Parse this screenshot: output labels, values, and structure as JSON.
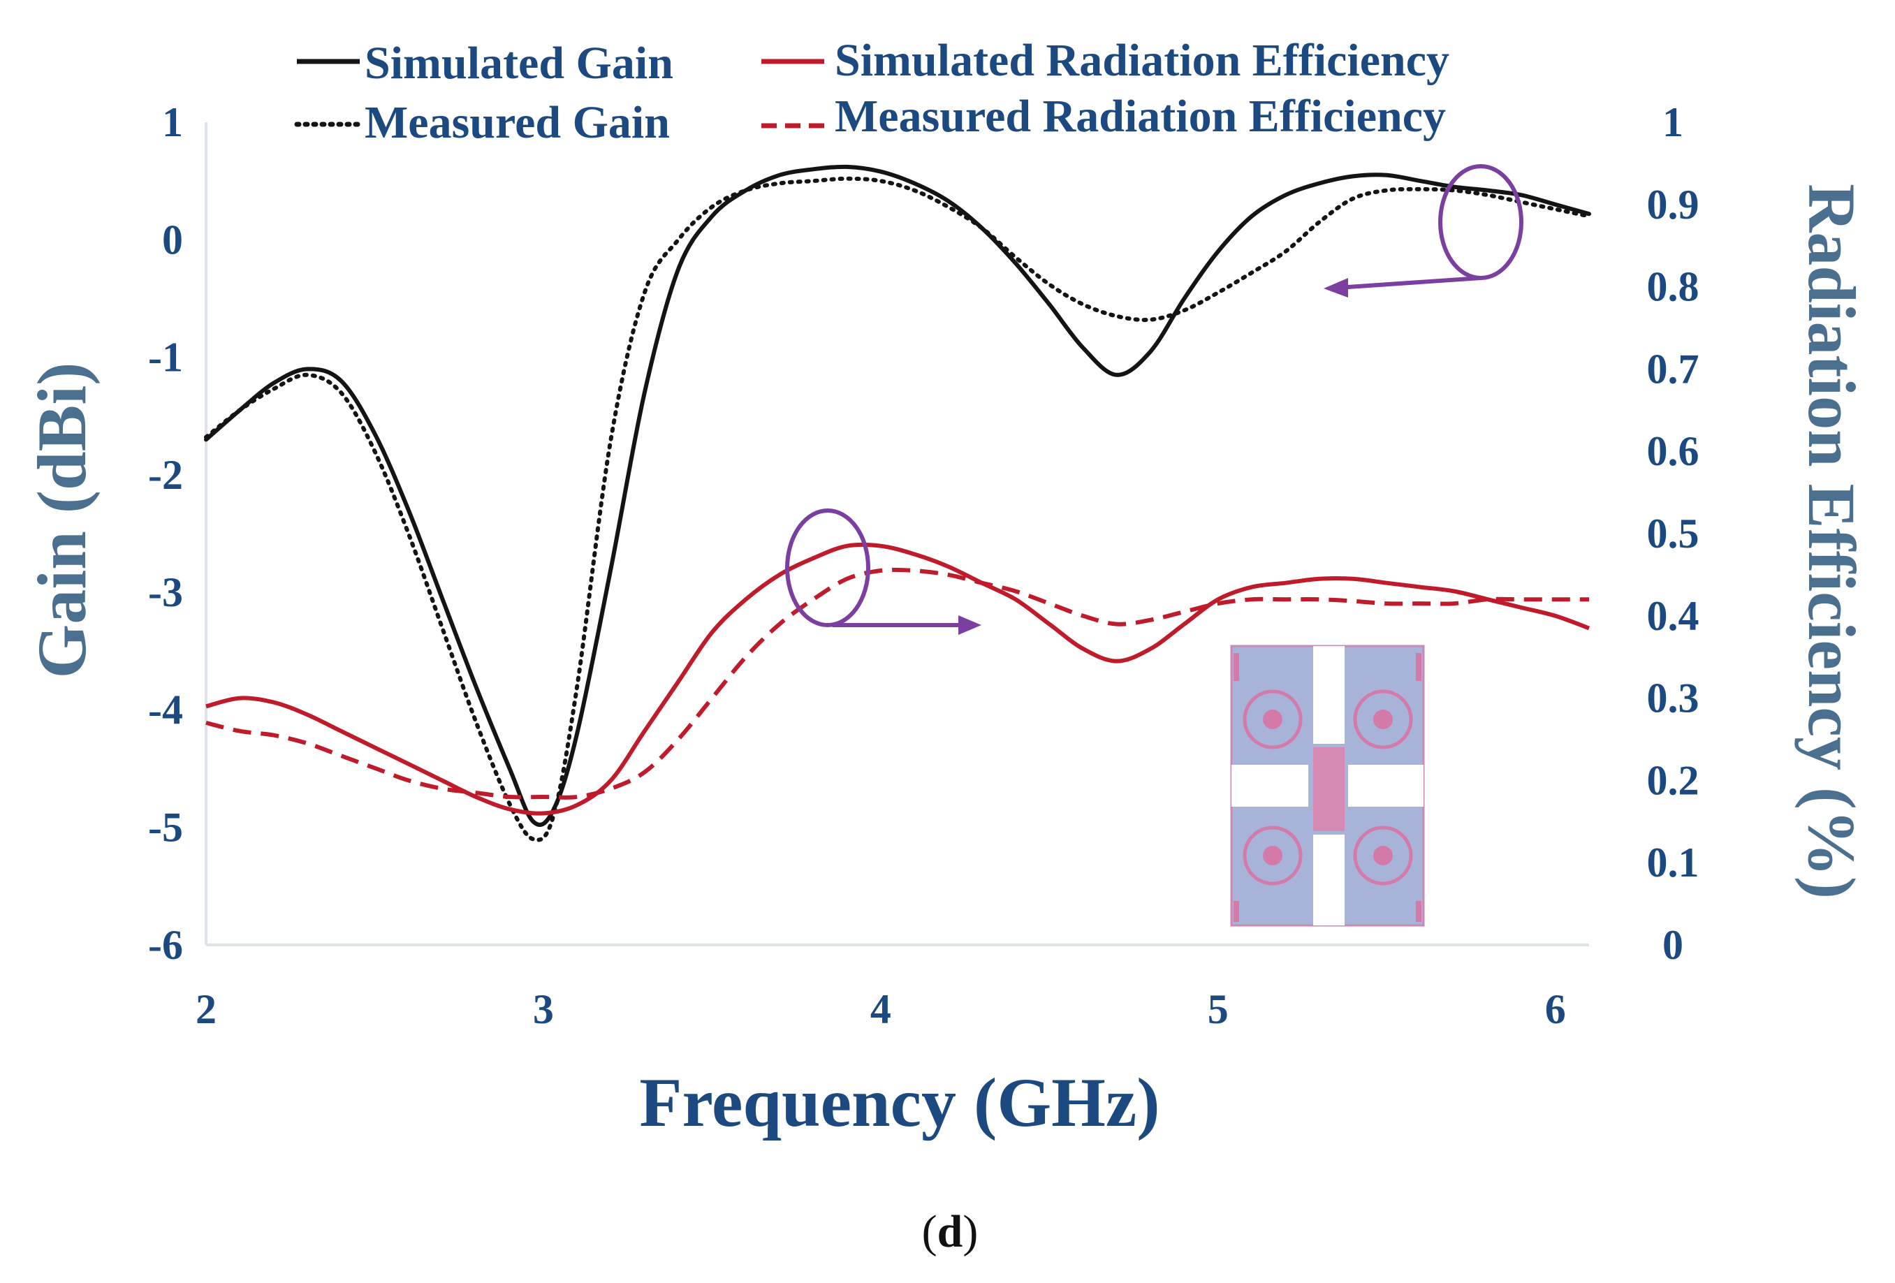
{
  "chart_data": {
    "type": "line",
    "xlabel": "Frequency (GHz)",
    "ylabel_left": "Gain (dBi)",
    "ylabel_right": "Radiation Efficiency (%)",
    "caption": {
      "open": "(",
      "letter": "d",
      "close": ")"
    },
    "xlim": [
      2,
      6.1
    ],
    "ylim_left": [
      -6,
      1
    ],
    "ylim_right": [
      0,
      1
    ],
    "x_ticks": [
      "2",
      "3",
      "4",
      "5",
      "6"
    ],
    "y_left_ticks": [
      "1",
      "0",
      "-1",
      "-2",
      "-3",
      "-4",
      "-5",
      "-6"
    ],
    "y_right_ticks": [
      "1",
      "0.9",
      "0.8",
      "0.7",
      "0.6",
      "0.5",
      "0.4",
      "0.3",
      "0.2",
      "0.1",
      "0"
    ],
    "colors": {
      "gain": "#141414",
      "efficiency": "#c01b2a",
      "axis_text": "#1c4a80",
      "axis_title": "#4a6f8f",
      "marker": "#7b3fa0"
    },
    "series": [
      {
        "name": "Simulated Gain",
        "axis": "left",
        "style": "solid",
        "x": [
          2.0,
          2.1,
          2.2,
          2.3,
          2.4,
          2.5,
          2.6,
          2.7,
          2.8,
          2.9,
          2.97,
          3.03,
          3.1,
          3.2,
          3.3,
          3.4,
          3.5,
          3.6,
          3.7,
          3.8,
          3.9,
          4.0,
          4.1,
          4.2,
          4.3,
          4.4,
          4.5,
          4.6,
          4.7,
          4.8,
          4.9,
          5.0,
          5.1,
          5.2,
          5.3,
          5.4,
          5.5,
          5.6,
          5.7,
          5.8,
          5.9,
          6.0,
          6.1
        ],
        "y": [
          -1.7,
          -1.45,
          -1.22,
          -1.1,
          -1.2,
          -1.65,
          -2.3,
          -3.05,
          -3.8,
          -4.5,
          -4.95,
          -4.85,
          -4.2,
          -2.8,
          -1.3,
          -0.25,
          0.2,
          0.42,
          0.55,
          0.6,
          0.62,
          0.58,
          0.48,
          0.33,
          0.1,
          -0.2,
          -0.55,
          -0.92,
          -1.15,
          -0.95,
          -0.5,
          -0.1,
          0.2,
          0.38,
          0.48,
          0.54,
          0.55,
          0.5,
          0.45,
          0.42,
          0.38,
          0.3,
          0.22
        ]
      },
      {
        "name": "Measured Gain",
        "axis": "left",
        "style": "dotted",
        "x": [
          2.0,
          2.1,
          2.2,
          2.3,
          2.4,
          2.5,
          2.6,
          2.7,
          2.8,
          2.9,
          2.97,
          3.03,
          3.1,
          3.2,
          3.3,
          3.4,
          3.5,
          3.6,
          3.7,
          3.8,
          3.9,
          4.0,
          4.1,
          4.2,
          4.3,
          4.4,
          4.5,
          4.6,
          4.7,
          4.8,
          4.9,
          5.0,
          5.1,
          5.2,
          5.3,
          5.4,
          5.5,
          5.6,
          5.7,
          5.8,
          5.9,
          6.0,
          6.1
        ],
        "y": [
          -1.68,
          -1.45,
          -1.27,
          -1.15,
          -1.3,
          -1.8,
          -2.5,
          -3.3,
          -4.1,
          -4.8,
          -5.1,
          -4.9,
          -3.8,
          -1.7,
          -0.45,
          0.0,
          0.28,
          0.42,
          0.48,
          0.5,
          0.52,
          0.5,
          0.42,
          0.28,
          0.1,
          -0.15,
          -0.38,
          -0.55,
          -0.65,
          -0.68,
          -0.6,
          -0.45,
          -0.28,
          -0.1,
          0.15,
          0.35,
          0.42,
          0.43,
          0.42,
          0.38,
          0.32,
          0.26,
          0.2
        ]
      },
      {
        "name": "Simulated Radiation Efficiency",
        "axis": "right",
        "style": "solid",
        "x": [
          2.0,
          2.1,
          2.2,
          2.3,
          2.4,
          2.5,
          2.6,
          2.7,
          2.8,
          2.9,
          3.0,
          3.1,
          3.2,
          3.3,
          3.4,
          3.5,
          3.6,
          3.7,
          3.8,
          3.9,
          4.0,
          4.1,
          4.2,
          4.3,
          4.4,
          4.5,
          4.6,
          4.7,
          4.8,
          4.9,
          5.0,
          5.1,
          5.2,
          5.3,
          5.4,
          5.5,
          5.6,
          5.7,
          5.8,
          5.9,
          6.0,
          6.1
        ],
        "y": [
          0.29,
          0.3,
          0.295,
          0.28,
          0.26,
          0.24,
          0.22,
          0.2,
          0.18,
          0.165,
          0.16,
          0.17,
          0.2,
          0.26,
          0.32,
          0.38,
          0.42,
          0.45,
          0.47,
          0.485,
          0.485,
          0.475,
          0.46,
          0.44,
          0.42,
          0.39,
          0.36,
          0.345,
          0.36,
          0.39,
          0.42,
          0.435,
          0.44,
          0.445,
          0.445,
          0.44,
          0.435,
          0.43,
          0.42,
          0.41,
          0.4,
          0.385
        ]
      },
      {
        "name": "Measured Radiation Efficiency",
        "axis": "right",
        "style": "dashed",
        "x": [
          2.0,
          2.1,
          2.2,
          2.3,
          2.4,
          2.5,
          2.6,
          2.7,
          2.8,
          2.9,
          3.0,
          3.1,
          3.2,
          3.3,
          3.4,
          3.5,
          3.6,
          3.7,
          3.8,
          3.9,
          4.0,
          4.1,
          4.2,
          4.3,
          4.4,
          4.5,
          4.6,
          4.7,
          4.8,
          4.9,
          5.0,
          5.1,
          5.2,
          5.3,
          5.4,
          5.5,
          5.6,
          5.7,
          5.8,
          5.9,
          6.0,
          6.1
        ],
        "y": [
          0.27,
          0.26,
          0.255,
          0.245,
          0.23,
          0.215,
          0.2,
          0.19,
          0.185,
          0.18,
          0.18,
          0.18,
          0.19,
          0.21,
          0.25,
          0.3,
          0.35,
          0.39,
          0.42,
          0.445,
          0.455,
          0.455,
          0.45,
          0.44,
          0.43,
          0.415,
          0.4,
          0.39,
          0.395,
          0.405,
          0.415,
          0.42,
          0.42,
          0.42,
          0.418,
          0.415,
          0.415,
          0.415,
          0.42,
          0.42,
          0.42,
          0.42
        ]
      }
    ],
    "legend": [
      "Simulated Gain",
      "Simulated Radiation Efficiency",
      "Measured Gain",
      "Measured Radiation Efficiency"
    ],
    "legend_position": "top",
    "annotations": [
      {
        "kind": "ellipse-arrow",
        "target": "gain",
        "points_to": "left axis",
        "near_x": 5.8,
        "near_y_left": 0.2
      },
      {
        "kind": "ellipse-arrow",
        "target": "efficiency",
        "points_to": "right axis",
        "near_x": 3.9,
        "near_y_right": 0.45
      }
    ],
    "inset": "antenna array layout with four circular-ring elements"
  }
}
